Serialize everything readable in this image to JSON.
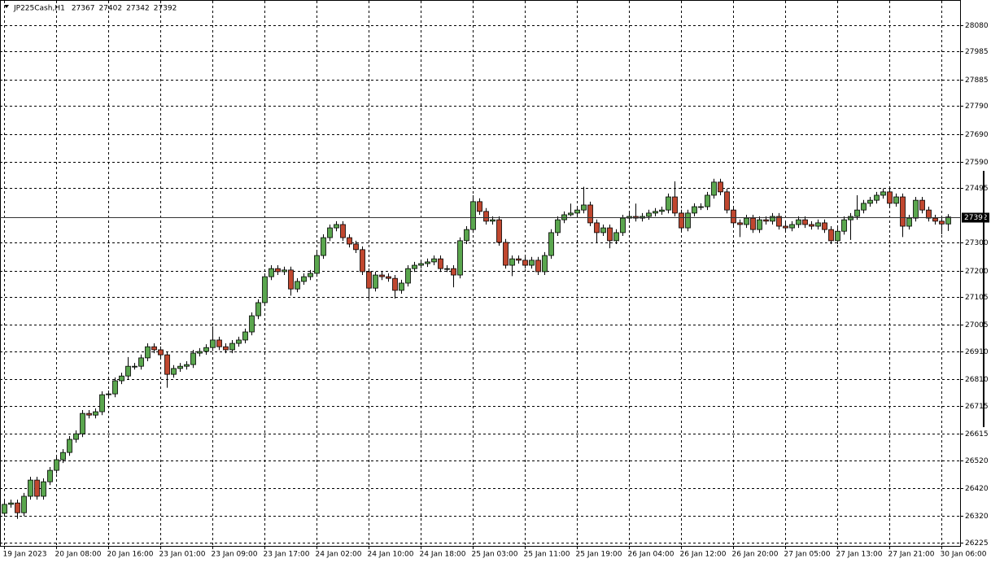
{
  "chart_data": {
    "type": "candlestick",
    "title": "JP225Cash,H1",
    "categories": [
      "19 Jan 2023",
      null,
      null,
      null,
      null,
      null,
      null,
      null,
      "20 Jan 08:00",
      null,
      null,
      null,
      null,
      null,
      null,
      null,
      "20 Jan 16:00",
      null,
      null,
      null,
      null,
      null,
      null,
      null,
      "23 Jan 01:00",
      null,
      null,
      null,
      null,
      null,
      null,
      null,
      "23 Jan 09:00",
      null,
      null,
      null,
      null,
      null,
      null,
      null,
      "23 Jan 17:00",
      null,
      null,
      null,
      null,
      null,
      null,
      null,
      "24 Jan 02:00",
      null,
      null,
      null,
      null,
      null,
      null,
      null,
      "24 Jan 10:00",
      null,
      null,
      null,
      null,
      null,
      null,
      null,
      "24 Jan 18:00",
      null,
      null,
      null,
      null,
      null,
      null,
      null,
      "25 Jan 03:00",
      null,
      null,
      null,
      null,
      null,
      null,
      null,
      "25 Jan 11:00",
      null,
      null,
      null,
      null,
      null,
      null,
      null,
      "25 Jan 19:00",
      null,
      null,
      null,
      null,
      null,
      null,
      null,
      "26 Jan 04:00",
      null,
      null,
      null,
      null,
      null,
      null,
      null,
      "26 Jan 12:00",
      null,
      null,
      null,
      null,
      null,
      null,
      null,
      "26 Jan 20:00",
      null,
      null,
      null,
      null,
      null,
      null,
      null,
      "27 Jan 05:00",
      null,
      null,
      null,
      null,
      null,
      null,
      null,
      "27 Jan 13:00",
      null,
      null,
      null,
      null,
      null,
      null,
      null,
      "27 Jan 21:00",
      null,
      null,
      null,
      null,
      null,
      null,
      null,
      "30 Jan 06:00",
      null
    ],
    "open": [
      26330,
      26362,
      26367,
      26332,
      26391,
      26449,
      26391,
      26443,
      26484,
      26522,
      26548,
      26595,
      26615,
      26688,
      26682,
      26694,
      26755,
      26758,
      26805,
      26822,
      26857,
      26857,
      26887,
      26927,
      26916,
      26898,
      26828,
      26849,
      26857,
      26863,
      26904,
      26910,
      26924,
      26951,
      26927,
      26916,
      26939,
      26951,
      26980,
      27038,
      27085,
      27178,
      27207,
      27196,
      27202,
      27134,
      27161,
      27178,
      27190,
      27254,
      27318,
      27353,
      27365,
      27318,
      27295,
      27275,
      27196,
      27137,
      27184,
      27178,
      27172,
      27129,
      27155,
      27207,
      27219,
      27225,
      27231,
      27242,
      27207,
      27207,
      27184,
      27307,
      27347,
      27447,
      27412,
      27377,
      27382,
      27301,
      27219,
      27242,
      27237,
      27219,
      27237,
      27196,
      27254,
      27336,
      27382,
      27400,
      27406,
      27417,
      27435,
      27371,
      27336,
      27353,
      27307,
      27336,
      27388,
      27394,
      27388,
      27394,
      27406,
      27412,
      27417,
      27464,
      27406,
      27353,
      27406,
      27429,
      27429,
      27470,
      27517,
      27482,
      27417,
      27371,
      27365,
      27388,
      27347,
      27382,
      27377,
      27394,
      27359,
      27353,
      27365,
      27382,
      27365,
      27359,
      27371,
      27347,
      27307,
      27341,
      27382,
      27394,
      27417,
      27441,
      27452,
      27470,
      27482,
      27441,
      27464,
      27359,
      27388,
      27452,
      27417,
      27388,
      27377,
      27367
    ],
    "high": [
      26374,
      26379,
      26379,
      26403,
      26461,
      26461,
      26455,
      26496,
      26534,
      26560,
      26607,
      26627,
      26700,
      26700,
      26706,
      26767,
      26770,
      26817,
      26834,
      26890,
      26869,
      26899,
      26939,
      26939,
      26928,
      26910,
      26861,
      26869,
      26875,
      26916,
      26922,
      26936,
      27000,
      26963,
      26939,
      26951,
      26963,
      26992,
      27050,
      27097,
      27190,
      27219,
      27219,
      27214,
      27214,
      27173,
      27190,
      27202,
      27266,
      27330,
      27365,
      27377,
      27377,
      27330,
      27307,
      27287,
      27208,
      27196,
      27196,
      27190,
      27184,
      27167,
      27219,
      27231,
      27237,
      27243,
      27254,
      27254,
      27219,
      27219,
      27319,
      27359,
      27470,
      27459,
      27424,
      27394,
      27394,
      27313,
      27254,
      27254,
      27249,
      27249,
      27249,
      27266,
      27348,
      27394,
      27412,
      27440,
      27429,
      27500,
      27447,
      27383,
      27365,
      27365,
      27348,
      27400,
      27406,
      27440,
      27406,
      27418,
      27424,
      27429,
      27476,
      27520,
      27418,
      27418,
      27441,
      27441,
      27482,
      27529,
      27529,
      27494,
      27429,
      27383,
      27400,
      27400,
      27394,
      27394,
      27406,
      27406,
      27371,
      27377,
      27394,
      27394,
      27377,
      27383,
      27383,
      27359,
      27353,
      27394,
      27406,
      27470,
      27453,
      27464,
      27482,
      27494,
      27494,
      27476,
      27476,
      27400,
      27464,
      27464,
      27429,
      27400,
      27389,
      27402
    ],
    "low": [
      26318,
      26350,
      26310,
      26320,
      26379,
      26379,
      26379,
      26431,
      26472,
      26510,
      26536,
      26583,
      26603,
      26670,
      26670,
      26682,
      26743,
      26746,
      26793,
      26810,
      26845,
      26845,
      26875,
      26904,
      26886,
      26780,
      26816,
      26837,
      26845,
      26851,
      26892,
      26898,
      26912,
      26915,
      26904,
      26904,
      26927,
      26939,
      26968,
      27026,
      27073,
      27166,
      27184,
      27184,
      27110,
      27122,
      27149,
      27166,
      27178,
      27242,
      27306,
      27341,
      27306,
      27283,
      27263,
      27184,
      27095,
      27125,
      27166,
      27160,
      27100,
      27117,
      27143,
      27195,
      27207,
      27213,
      27219,
      27195,
      27195,
      27140,
      27172,
      27295,
      27335,
      27400,
      27365,
      27365,
      27289,
      27207,
      27180,
      27225,
      27207,
      27207,
      27184,
      27184,
      27242,
      27324,
      27370,
      27394,
      27394,
      27405,
      27359,
      27300,
      27324,
      27280,
      27295,
      27324,
      27376,
      27376,
      27376,
      27382,
      27394,
      27400,
      27405,
      27394,
      27341,
      27341,
      27394,
      27417,
      27417,
      27458,
      27470,
      27405,
      27359,
      27320,
      27353,
      27335,
      27335,
      27365,
      27365,
      27347,
      27341,
      27341,
      27353,
      27353,
      27347,
      27347,
      27335,
      27295,
      27295,
      27329,
      27310,
      27382,
      27405,
      27429,
      27440,
      27458,
      27429,
      27429,
      27320,
      27347,
      27376,
      27405,
      27376,
      27365,
      27330,
      27342
    ],
    "close": [
      26362,
      26367,
      26332,
      26391,
      26449,
      26391,
      26443,
      26484,
      26522,
      26548,
      26595,
      26615,
      26688,
      26682,
      26694,
      26755,
      26758,
      26805,
      26822,
      26857,
      26857,
      26887,
      26927,
      26916,
      26898,
      26828,
      26849,
      26857,
      26863,
      26904,
      26910,
      26924,
      26951,
      26927,
      26916,
      26939,
      26951,
      26980,
      27038,
      27085,
      27178,
      27207,
      27196,
      27202,
      27134,
      27161,
      27178,
      27190,
      27254,
      27318,
      27353,
      27365,
      27318,
      27295,
      27275,
      27196,
      27137,
      27184,
      27178,
      27172,
      27129,
      27155,
      27207,
      27219,
      27225,
      27231,
      27242,
      27207,
      27207,
      27184,
      27307,
      27347,
      27447,
      27412,
      27377,
      27382,
      27301,
      27219,
      27242,
      27237,
      27219,
      27237,
      27196,
      27254,
      27336,
      27382,
      27400,
      27406,
      27417,
      27435,
      27371,
      27336,
      27353,
      27307,
      27336,
      27388,
      27394,
      27388,
      27394,
      27406,
      27412,
      27417,
      27464,
      27406,
      27353,
      27406,
      27429,
      27429,
      27470,
      27517,
      27482,
      27417,
      27371,
      27365,
      27388,
      27347,
      27382,
      27377,
      27394,
      27359,
      27353,
      27365,
      27382,
      27365,
      27359,
      27371,
      27347,
      27307,
      27341,
      27382,
      27394,
      27417,
      27441,
      27452,
      27470,
      27482,
      27441,
      27464,
      27359,
      27388,
      27452,
      27417,
      27388,
      27377,
      27367,
      27392
    ],
    "up_color": "#5aa64e",
    "down_color": "#c0472f",
    "ylim": [
      26216,
      28161
    ],
    "yticks": [
      28080,
      27985,
      27885,
      27790,
      27690,
      27590,
      27495,
      27300,
      27200,
      27105,
      27005,
      26910,
      26810,
      26715,
      26615,
      26520,
      26420,
      26320,
      26225
    ],
    "grid": true
  }
}
